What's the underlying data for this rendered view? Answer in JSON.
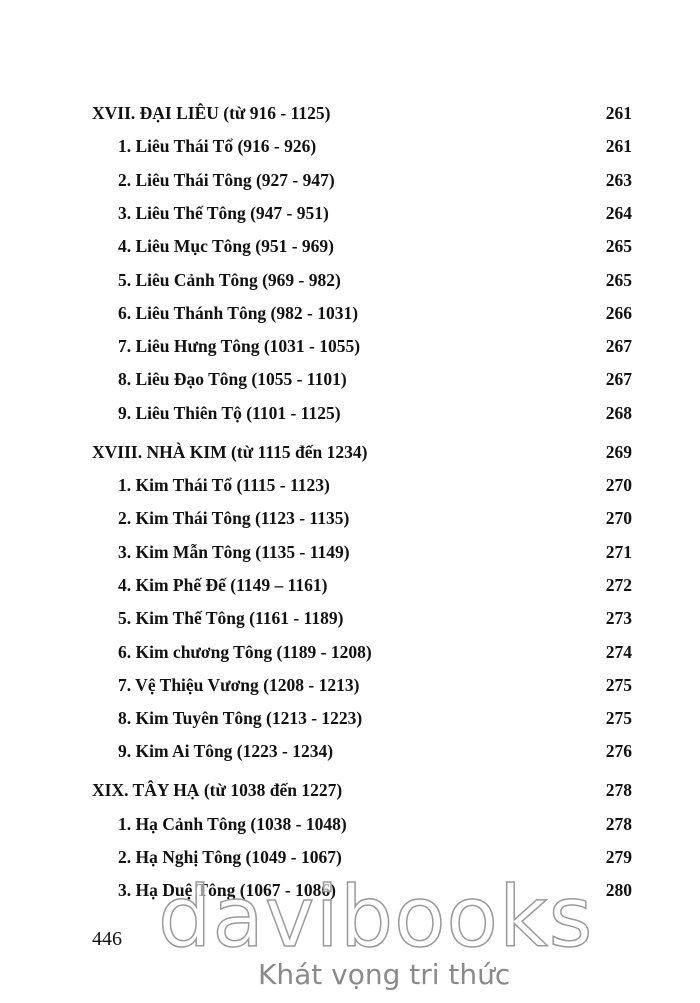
{
  "sections": [
    {
      "title": "XVII. ĐẠI LIÊU (từ 916 - 1125)",
      "page": "261",
      "items": [
        {
          "label": "1. Liêu Thái Tổ (916 - 926)",
          "page": "261"
        },
        {
          "label": "2. Liêu Thái Tông (927 - 947)",
          "page": "263"
        },
        {
          "label": "3. Liêu Thế Tông (947 - 951)",
          "page": "264"
        },
        {
          "label": "4. Liêu Mục Tông (951 - 969)",
          "page": "265"
        },
        {
          "label": "5. Liêu Cảnh Tông (969 - 982)",
          "page": "265"
        },
        {
          "label": "6. Liêu Thánh Tông (982 - 1031)",
          "page": "266"
        },
        {
          "label": "7. Liêu Hưng Tông (1031 - 1055)",
          "page": "267"
        },
        {
          "label": "8. Liêu Đạo Tông (1055 - 1101)",
          "page": "267"
        },
        {
          "label": "9. Liêu Thiên Tộ (1101 - 1125)",
          "page": "268"
        }
      ]
    },
    {
      "title": "XVIII. NHÀ KIM (từ 1115 đến 1234)",
      "page": "269",
      "items": [
        {
          "label": "1. Kim Thái Tổ (1115 - 1123)",
          "page": "270"
        },
        {
          "label": "2. Kim Thái Tông (1123 - 1135)",
          "page": "270"
        },
        {
          "label": "3. Kim Mẫn Tông (1135 - 1149)",
          "page": "271"
        },
        {
          "label": "4. Kim Phế Đế (1149 – 1161)",
          "page": "272"
        },
        {
          "label": "5. Kim Thế Tông (1161 - 1189)",
          "page": "273"
        },
        {
          "label": "6. Kim chương Tông (1189 - 1208)",
          "page": "274"
        },
        {
          "label": "7. Vệ Thiệu Vương (1208 - 1213)",
          "page": "275"
        },
        {
          "label": "8. Kim Tuyên Tông (1213 - 1223)",
          "page": "275"
        },
        {
          "label": "9. Kim Ai Tông (1223 - 1234)",
          "page": "276"
        }
      ]
    },
    {
      "title": "XIX. TÂY HẠ (từ 1038 đến 1227)",
      "page": "278",
      "items": [
        {
          "label": "1. Hạ Cảnh Tông (1038 - 1048)",
          "page": "278"
        },
        {
          "label": "2. Hạ Nghị Tông (1049 - 1067)",
          "page": "279"
        },
        {
          "label": "3. Hạ Duệ Tông (1067 - 1086)",
          "page": "280"
        }
      ]
    }
  ],
  "footer": {
    "page_number": "446"
  },
  "watermark": {
    "brand": "davibooks",
    "slogan": "Khát vọng tri thức"
  }
}
